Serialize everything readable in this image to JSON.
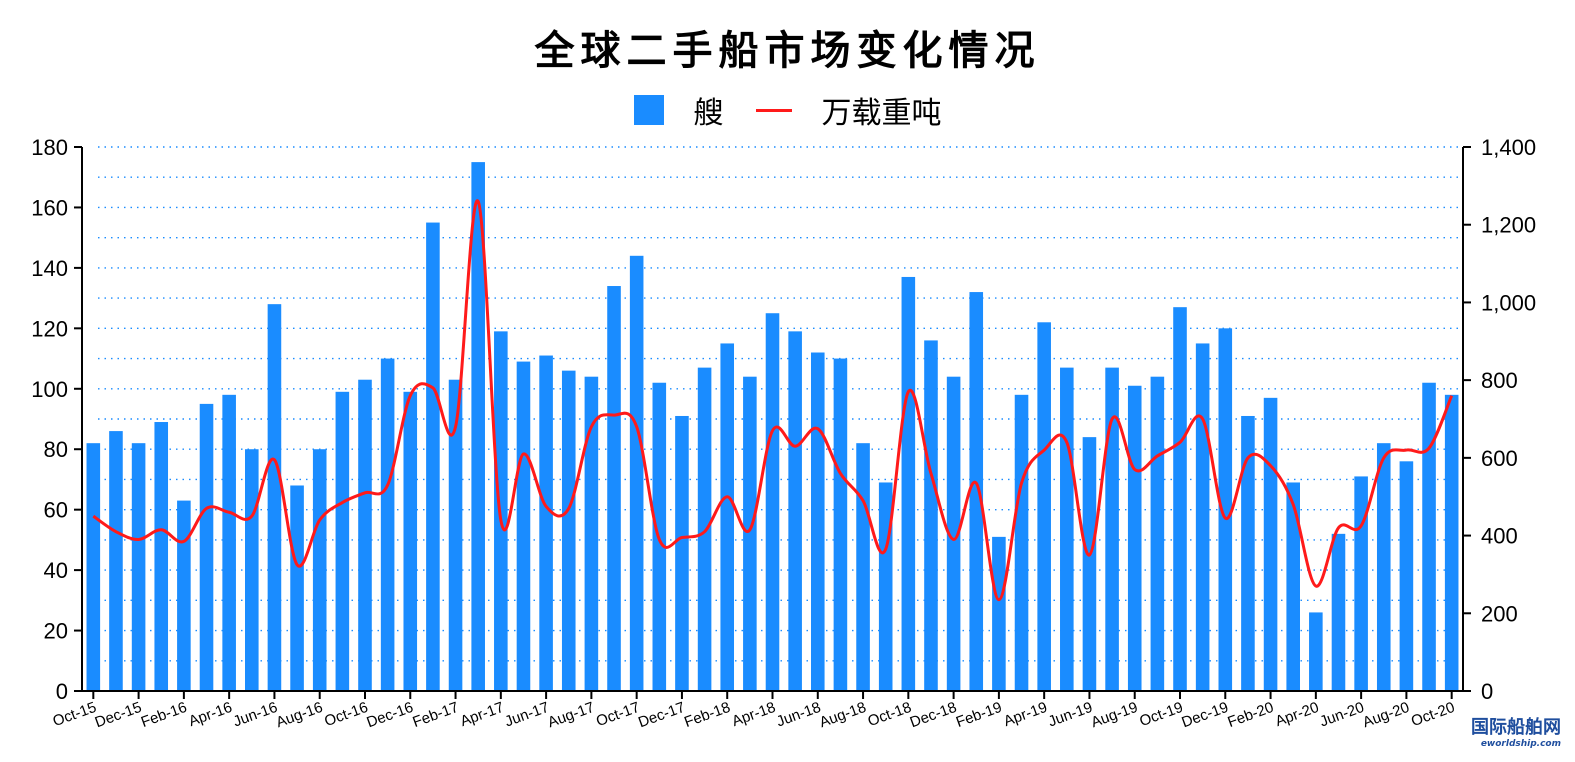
{
  "colors": {
    "bar": "#1a8cff",
    "line": "#ff1a1a",
    "grid": "#1a8cff",
    "axis": "#000000"
  },
  "watermark": {
    "main": "国际船舶网",
    "sub": "eworldship.com"
  },
  "chart_data": {
    "type": "bar",
    "title": "全球二手船市场变化情况",
    "legend_position": "top-center",
    "grid": true,
    "x": [
      "Oct-15",
      "Nov-15",
      "Dec-15",
      "Jan-16",
      "Feb-16",
      "Mar-16",
      "Apr-16",
      "May-16",
      "Jun-16",
      "Jul-16",
      "Aug-16",
      "Sep-16",
      "Oct-16",
      "Nov-16",
      "Dec-16",
      "Jan-17",
      "Feb-17",
      "Mar-17",
      "Apr-17",
      "May-17",
      "Jun-17",
      "Jul-17",
      "Aug-17",
      "Sep-17",
      "Oct-17",
      "Nov-17",
      "Dec-17",
      "Jan-18",
      "Feb-18",
      "Mar-18",
      "Apr-18",
      "May-18",
      "Jun-18",
      "Jul-18",
      "Aug-18",
      "Sep-18",
      "Oct-18",
      "Nov-18",
      "Dec-18",
      "Jan-19",
      "Feb-19",
      "Mar-19",
      "Apr-19",
      "May-19",
      "Jun-19",
      "Jul-19",
      "Aug-19",
      "Sep-19",
      "Oct-19",
      "Nov-19",
      "Dec-19",
      "Jan-20",
      "Feb-20",
      "Mar-20",
      "Apr-20",
      "May-20",
      "Jun-20",
      "Jul-20",
      "Aug-20",
      "Sep-20",
      "Oct-20"
    ],
    "x_tick_labels": [
      "Oct-15",
      "Dec-15",
      "Feb-16",
      "Apr-16",
      "Jun-16",
      "Aug-16",
      "Oct-16",
      "Dec-16",
      "Feb-17",
      "Apr-17",
      "Jun-17",
      "Aug-17",
      "Oct-17",
      "Dec-17",
      "Feb-18",
      "Apr-18",
      "Jun-18",
      "Aug-18",
      "Oct-18",
      "Dec-18",
      "Feb-19",
      "Apr-19",
      "Jun-19",
      "Aug-19",
      "Oct-19",
      "Dec-19",
      "Feb-20",
      "Apr-20",
      "Jun-20",
      "Aug-20",
      "Oct-20"
    ],
    "y_left": {
      "ylim": [
        0,
        180
      ],
      "ticks": [
        0,
        20,
        40,
        60,
        80,
        100,
        120,
        140,
        160,
        180
      ]
    },
    "y_right": {
      "ylim": [
        0,
        1400
      ],
      "ticks": [
        0,
        200,
        400,
        600,
        800,
        1000,
        1200,
        1400
      ],
      "tick_labels": [
        "0",
        "200",
        "400",
        "600",
        "800",
        "1,000",
        "1,200",
        "1,400"
      ]
    },
    "series": [
      {
        "name": "艘",
        "type": "bar",
        "axis": "left",
        "values": [
          82,
          86,
          82,
          89,
          63,
          95,
          98,
          80,
          128,
          68,
          80,
          99,
          103,
          110,
          99,
          155,
          103,
          175,
          119,
          109,
          111,
          106,
          104,
          134,
          144,
          102,
          91,
          107,
          115,
          104,
          125,
          119,
          112,
          110,
          82,
          69,
          137,
          116,
          104,
          132,
          51,
          98,
          122,
          107,
          84,
          107,
          101,
          104,
          127,
          115,
          120,
          91,
          97,
          69,
          26,
          52,
          71,
          82,
          76,
          102,
          98
        ]
      },
      {
        "name": "万载重吨",
        "type": "line",
        "axis": "right",
        "values": [
          450,
          410,
          390,
          415,
          385,
          470,
          460,
          450,
          595,
          325,
          440,
          485,
          510,
          530,
          760,
          780,
          680,
          1260,
          440,
          610,
          475,
          470,
          680,
          710,
          680,
          390,
          395,
          410,
          500,
          415,
          670,
          630,
          675,
          560,
          490,
          365,
          770,
          560,
          390,
          535,
          235,
          535,
          620,
          640,
          350,
          700,
          570,
          605,
          640,
          700,
          445,
          600,
          580,
          480,
          270,
          420,
          425,
          600,
          620,
          625,
          760
        ]
      }
    ]
  }
}
